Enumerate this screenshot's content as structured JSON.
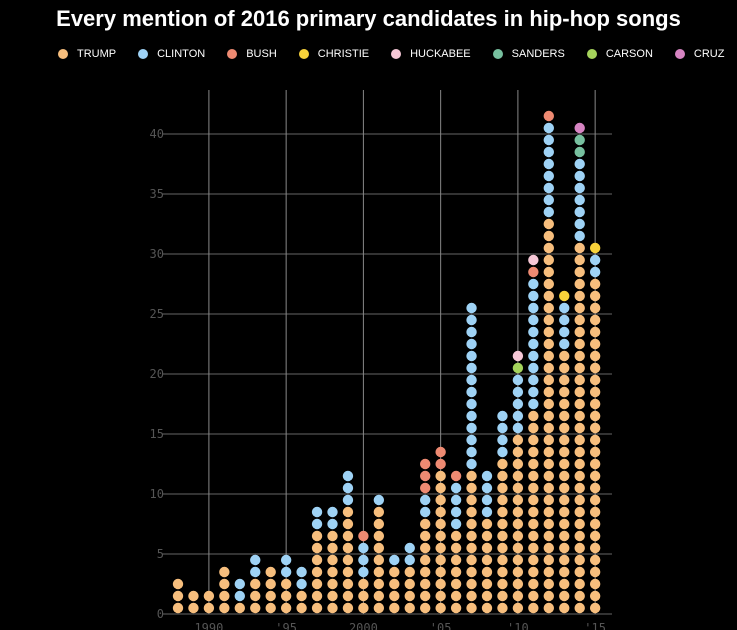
{
  "chart_data": {
    "type": "scatter",
    "title": "Every mention of 2016 primary candidates in hip-hop songs",
    "legend": [
      {
        "name": "TRUMP",
        "color": "#f7be7d"
      },
      {
        "name": "CLINTON",
        "color": "#9ed2f5"
      },
      {
        "name": "BUSH",
        "color": "#ee8a72"
      },
      {
        "name": "CHRISTIE",
        "color": "#f8d23a"
      },
      {
        "name": "HUCKABEE",
        "color": "#f6c7d6"
      },
      {
        "name": "SANDERS",
        "color": "#77c09f"
      },
      {
        "name": "CARSON",
        "color": "#a5d35b"
      },
      {
        "name": "CRUZ",
        "color": "#d684c2"
      }
    ],
    "y_ticks": [
      0,
      5,
      10,
      15,
      20,
      25,
      30,
      35,
      40
    ],
    "x_ticks": [
      {
        "year": 1990,
        "label": "1990"
      },
      {
        "year": 1995,
        "label": "'95"
      },
      {
        "year": 2000,
        "label": "2000"
      },
      {
        "year": 2005,
        "label": "'05"
      },
      {
        "year": 2010,
        "label": "'10"
      },
      {
        "year": 2015,
        "label": "'15"
      }
    ],
    "ylim": [
      0,
      42
    ],
    "xlim": [
      1989,
      1997.0
    ],
    "columns": [
      {
        "year": 1989,
        "stack": [
          {
            "name": "TRUMP",
            "count": 3
          }
        ]
      },
      {
        "year": 1990,
        "stack": [
          {
            "name": "TRUMP",
            "count": 2
          }
        ]
      },
      {
        "year": 1991,
        "stack": [
          {
            "name": "TRUMP",
            "count": 2
          }
        ]
      },
      {
        "year": 1992,
        "stack": [
          {
            "name": "TRUMP",
            "count": 4
          }
        ]
      },
      {
        "year": 1993,
        "stack": [
          {
            "name": "TRUMP",
            "count": 1
          },
          {
            "name": "CLINTON",
            "count": 2
          }
        ]
      },
      {
        "year": 1994,
        "stack": [
          {
            "name": "TRUMP",
            "count": 3
          },
          {
            "name": "CLINTON",
            "count": 2
          }
        ]
      },
      {
        "year": 1995,
        "stack": [
          {
            "name": "TRUMP",
            "count": 4
          }
        ]
      },
      {
        "year": 1996,
        "stack": [
          {
            "name": "TRUMP",
            "count": 3
          },
          {
            "name": "CLINTON",
            "count": 2
          }
        ]
      },
      {
        "year": 1997,
        "stack": [
          {
            "name": "TRUMP",
            "count": 2
          },
          {
            "name": "CLINTON",
            "count": 2
          }
        ]
      },
      {
        "year": 1998,
        "stack": [
          {
            "name": "TRUMP",
            "count": 7
          },
          {
            "name": "CLINTON",
            "count": 2
          }
        ]
      },
      {
        "year": 1999,
        "stack": [
          {
            "name": "TRUMP",
            "count": 7
          },
          {
            "name": "CLINTON",
            "count": 2
          }
        ]
      },
      {
        "year": 2000,
        "stack": [
          {
            "name": "TRUMP",
            "count": 9
          },
          {
            "name": "CLINTON",
            "count": 3
          }
        ]
      },
      {
        "year": 2001,
        "stack": [
          {
            "name": "TRUMP",
            "count": 3
          },
          {
            "name": "CLINTON",
            "count": 3
          },
          {
            "name": "BUSH",
            "count": 1
          }
        ]
      },
      {
        "year": 2002,
        "stack": [
          {
            "name": "TRUMP",
            "count": 9
          },
          {
            "name": "CLINTON",
            "count": 1
          }
        ]
      },
      {
        "year": 2003,
        "stack": [
          {
            "name": "TRUMP",
            "count": 4
          },
          {
            "name": "CLINTON",
            "count": 1
          }
        ]
      },
      {
        "year": 2004,
        "stack": [
          {
            "name": "TRUMP",
            "count": 4
          },
          {
            "name": "CLINTON",
            "count": 2
          }
        ]
      },
      {
        "year": 2005,
        "stack": [
          {
            "name": "TRUMP",
            "count": 8
          },
          {
            "name": "CLINTON",
            "count": 2
          },
          {
            "name": "BUSH",
            "count": 3
          }
        ]
      },
      {
        "year": 2006,
        "stack": [
          {
            "name": "TRUMP",
            "count": 12
          },
          {
            "name": "BUSH",
            "count": 2
          }
        ]
      },
      {
        "year": 2007,
        "stack": [
          {
            "name": "TRUMP",
            "count": 7
          },
          {
            "name": "CLINTON",
            "count": 4
          },
          {
            "name": "BUSH",
            "count": 1
          }
        ]
      },
      {
        "year": 2008,
        "stack": [
          {
            "name": "TRUMP",
            "count": 12
          },
          {
            "name": "CLINTON",
            "count": 14
          }
        ]
      },
      {
        "year": 2009,
        "stack": [
          {
            "name": "TRUMP",
            "count": 8
          },
          {
            "name": "CLINTON",
            "count": 4
          }
        ]
      },
      {
        "year": 2010,
        "stack": [
          {
            "name": "TRUMP",
            "count": 13
          },
          {
            "name": "CLINTON",
            "count": 4
          }
        ]
      },
      {
        "year": 2011,
        "stack": [
          {
            "name": "TRUMP",
            "count": 15
          },
          {
            "name": "CLINTON",
            "count": 5
          },
          {
            "name": "CARSON",
            "count": 1
          },
          {
            "name": "HUCKABEE",
            "count": 1
          }
        ]
      },
      {
        "year": 2012,
        "stack": [
          {
            "name": "TRUMP",
            "count": 17
          },
          {
            "name": "CLINTON",
            "count": 11
          },
          {
            "name": "BUSH",
            "count": 1
          },
          {
            "name": "HUCKABEE",
            "count": 1
          }
        ]
      },
      {
        "year": 2013,
        "stack": [
          {
            "name": "TRUMP",
            "count": 33
          },
          {
            "name": "CLINTON",
            "count": 8
          },
          {
            "name": "BUSH",
            "count": 1
          }
        ]
      },
      {
        "year": 2014,
        "stack": [
          {
            "name": "TRUMP",
            "count": 22
          },
          {
            "name": "CLINTON",
            "count": 4
          },
          {
            "name": "CHRISTIE",
            "count": 1
          }
        ]
      },
      {
        "year": 2015,
        "stack": [
          {
            "name": "TRUMP",
            "count": 31
          },
          {
            "name": "CLINTON",
            "count": 7
          },
          {
            "name": "SANDERS",
            "count": 2
          },
          {
            "name": "CRUZ",
            "count": 1
          }
        ]
      },
      {
        "year": 2016,
        "stack": [
          {
            "name": "TRUMP",
            "count": 28
          },
          {
            "name": "CLINTON",
            "count": 2
          },
          {
            "name": "CHRISTIE",
            "count": 1
          }
        ]
      }
    ]
  }
}
